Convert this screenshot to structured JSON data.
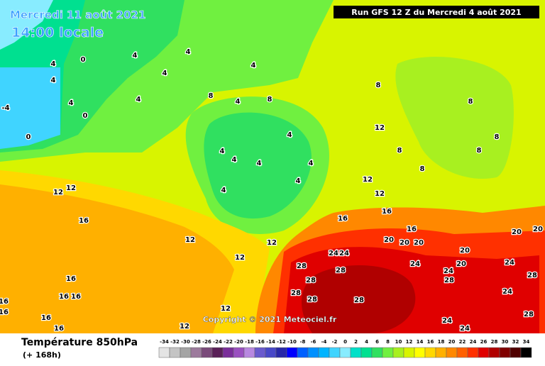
{
  "header": {
    "date": "Mercredi 11 août 2021",
    "time": "14:00 locale",
    "run": "Run GFS 12 Z du Mercredi 4 août 2021",
    "copyright": "Copyright © 2021 Meteociel.fr"
  },
  "footer": {
    "title": "Température 850hPa",
    "lead": "(+ 168h)"
  },
  "legend": {
    "values": [
      -34,
      -32,
      -30,
      -28,
      -26,
      -24,
      -22,
      -20,
      -18,
      -16,
      -14,
      -12,
      -10,
      -8,
      -6,
      -4,
      -2,
      0,
      2,
      4,
      6,
      8,
      10,
      12,
      14,
      16,
      18,
      20,
      22,
      24,
      26,
      28,
      30,
      32,
      34
    ],
    "colors": [
      "#e4e4e4",
      "#c4c4c4",
      "#a4a4a4",
      "#9c7a9c",
      "#7a4a7a",
      "#5a2058",
      "#7a2e9a",
      "#9a50c0",
      "#b888e0",
      "#6a5acd",
      "#4848c8",
      "#2828a8",
      "#0000ff",
      "#0060ff",
      "#0090ff",
      "#00b4ff",
      "#40d4ff",
      "#88ecff",
      "#00e0c8",
      "#00e090",
      "#30e060",
      "#70f040",
      "#a8f020",
      "#d8f400",
      "#ffff00",
      "#ffd800",
      "#ffb000",
      "#ff8800",
      "#ff6000",
      "#ff3000",
      "#e00000",
      "#b00000",
      "#800000",
      "#500000",
      "#000000"
    ]
  },
  "contour_labels": [
    4,
    4,
    4,
    4,
    4,
    4,
    4,
    0,
    0,
    0,
    -4,
    4,
    8,
    8,
    4,
    4,
    4,
    4,
    4,
    4,
    4,
    4,
    8,
    8,
    12,
    8,
    8,
    8,
    8,
    12,
    12,
    16,
    16,
    16,
    20,
    20,
    20,
    20,
    20,
    20,
    12,
    12,
    16,
    12,
    12,
    12,
    24,
    24,
    28,
    28,
    28,
    28,
    28,
    28,
    24,
    24,
    28,
    20,
    24,
    28,
    24,
    28,
    24,
    24,
    16,
    16,
    16,
    16,
    16,
    12,
    12,
    16,
    16
  ]
}
